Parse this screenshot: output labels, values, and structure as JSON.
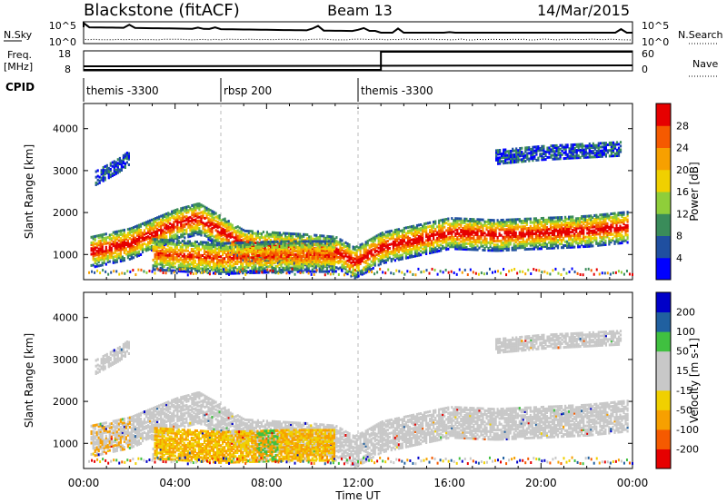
{
  "header": {
    "station": "Blackstone (fitACF)",
    "beam": "Beam 13",
    "date": "14/Mar/2015"
  },
  "noise_panel": {
    "left_label": "N.Sky",
    "right_label": "N.Search",
    "left_ticks": [
      "10^5",
      "10^0"
    ],
    "right_ticks": [
      "10^5",
      "10^0"
    ]
  },
  "freq_panel": {
    "left_label": "Freq.",
    "left_unit": "[MHz]",
    "right_label": "Nave",
    "left_ticks": [
      "18",
      "8"
    ],
    "right_ticks": [
      "60",
      "0"
    ]
  },
  "cpid_panel": {
    "label": "CPID",
    "segments": [
      {
        "text": "themis -3300",
        "start_h": 0
      },
      {
        "text": "rbsp 200",
        "start_h": 6
      },
      {
        "text": "themis -3300",
        "start_h": 12
      }
    ]
  },
  "colors": {
    "power_scale": [
      "#0000ff",
      "#1f4fa0",
      "#3a8c5a",
      "#8fce3a",
      "#f0d000",
      "#f7a000",
      "#f55a00",
      "#e60000"
    ],
    "velocity_scale": [
      "#e60000",
      "#f55a00",
      "#f7a000",
      "#f0d000",
      "#c8c8c8",
      "#c8c8c8",
      "#40c040",
      "#2060a0",
      "#0000c8"
    ]
  },
  "chart_data": [
    {
      "type": "heatmap",
      "name": "power",
      "ylabel": "Slant Range [km]",
      "y_ticks": [
        "1000",
        "2000",
        "3000",
        "4000"
      ],
      "ylim": [
        400,
        4600
      ],
      "colorbar_label": "Power [dB]",
      "colorbar_ticks": [
        "4",
        "8",
        "12",
        "16",
        "20",
        "24",
        "28"
      ],
      "bands": [
        {
          "points": [
            [
              0.3,
              1050
            ],
            [
              2,
              1250
            ],
            [
              4,
              1700
            ],
            [
              5,
              1850
            ],
            [
              5.8,
              1600
            ],
            [
              7,
              1200
            ],
            [
              10,
              1100
            ],
            [
              11,
              1050
            ],
            [
              11.8,
              800
            ],
            [
              12.2,
              900
            ],
            [
              13,
              1150
            ],
            [
              16,
              1500
            ],
            [
              18,
              1450
            ],
            [
              22,
              1550
            ],
            [
              23.8,
              1650
            ]
          ],
          "level": 7
        },
        {
          "points": [
            [
              3,
              1000
            ],
            [
              6,
              900
            ],
            [
              9,
              950
            ],
            [
              11,
              950
            ]
          ],
          "level": 6
        },
        {
          "points": [
            [
              0.5,
              2800
            ],
            [
              1.5,
              3100
            ],
            [
              2,
              3300
            ]
          ],
          "level": 1
        },
        {
          "points": [
            [
              18,
              3300
            ],
            [
              20,
              3400
            ],
            [
              23.5,
              3500
            ]
          ],
          "level": 0
        }
      ]
    },
    {
      "type": "heatmap",
      "name": "velocity",
      "xlabel": "Time UT",
      "ylabel": "Slant Range [km]",
      "x_ticks": [
        "00:00",
        "04:00",
        "08:00",
        "12:00",
        "16:00",
        "20:00",
        "00:00"
      ],
      "xlim": [
        0,
        24
      ],
      "y_ticks": [
        "1000",
        "2000",
        "3000",
        "4000"
      ],
      "ylim": [
        400,
        4600
      ],
      "colorbar_label": "Velocity [m s-1]",
      "colorbar_ticks": [
        "200",
        "100",
        "50",
        "15",
        "-15",
        "-50",
        "-100",
        "-200"
      ]
    }
  ]
}
